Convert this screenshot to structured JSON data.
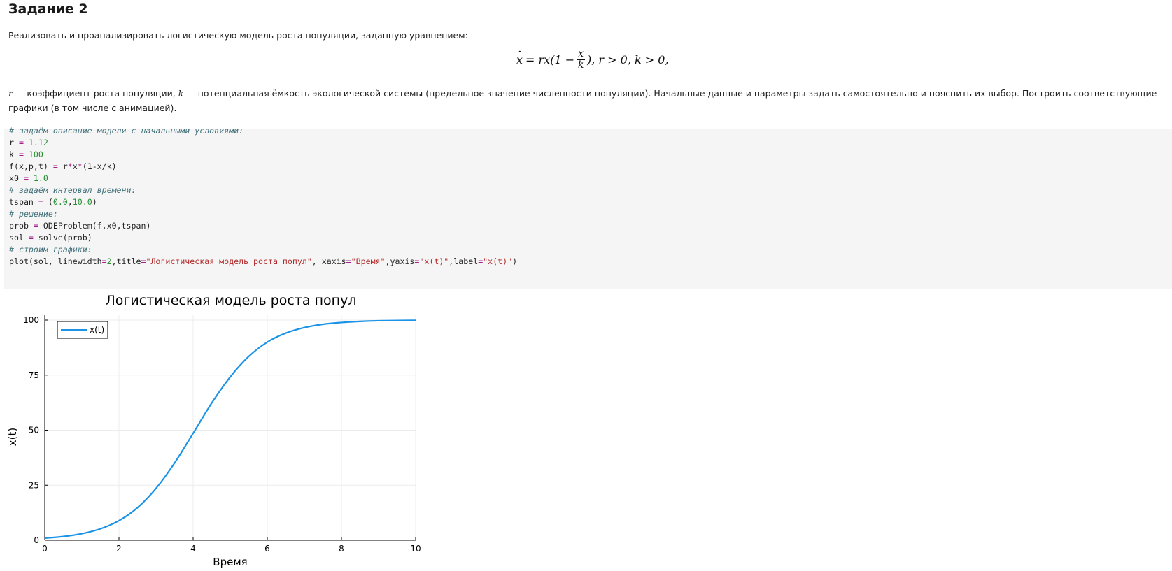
{
  "heading": "Задание 2",
  "intro": "Реализовать и проанализировать логистическую модель роста популяции, заданную уравнением:",
  "formula": {
    "lhs": "x",
    "eq": "= rx(1 −",
    "frac_num": "x",
    "frac_den": "k",
    "rest": "), r > 0, k > 0,"
  },
  "description": {
    "var_r": "r",
    "text_1": " — коэффициент роста популяции, ",
    "var_k": "k",
    "text_2": " — потенциальная ёмкость экологической системы (предельное значение численности популяции). Начальные данные и параметры задать самостоятельно и пояснить их выбор. Построить соответствующие графики (в том числе с анимацией)."
  },
  "code": {
    "comment_1": "# задаём описание модели с начальными условиями:",
    "r_name": "r",
    "r_value": "1.12",
    "k_name": "k",
    "k_value": "100",
    "f_lhs": "f(x,p,t)",
    "f_rhs_1": "r",
    "f_rhs_2": "x",
    "f_rhs_3": "(1-x/k)",
    "x0_name": "x0",
    "x0_value": "1.0",
    "comment_2": "# задаём интервал времени:",
    "tspan_name": "tspan",
    "tspan_a": "0.0",
    "tspan_b": "10.0",
    "comment_3": "# решение:",
    "prob_name": "prob",
    "prob_rhs": "ODEProblem(f,x0,tspan)",
    "sol_name": "sol",
    "sol_rhs": "solve(prob)",
    "comment_4": "# строим графики:",
    "plot_call": "plot(sol, linewidth",
    "plot_lw": "2",
    "plot_title_key": ",title",
    "plot_title_val": "\"Логистическая модель роста попул\"",
    "plot_xaxis_key": ", xaxis",
    "plot_xaxis_val": "\"Время\"",
    "plot_yaxis_key": ",yaxis",
    "plot_yaxis_val": "\"x(t)\"",
    "plot_label_key": ",label",
    "plot_label_val": "\"x(t)\"",
    "plot_close": ")",
    "eq_sign": " = ",
    "eq_sign_tight": "="
  },
  "colors": {
    "line": "#1b93e6",
    "comment": "#44737c",
    "number": "#218d2d",
    "string": "#b22a2a",
    "operator": "#a41e8c"
  },
  "chart_data": {
    "type": "line",
    "title": "Логистическая модель роста попул",
    "xlabel": "Время",
    "ylabel": "x(t)",
    "xlim": [
      0,
      10
    ],
    "ylim": [
      0,
      100
    ],
    "xticks": [
      0,
      2,
      4,
      6,
      8,
      10
    ],
    "yticks": [
      0,
      25,
      50,
      75,
      100
    ],
    "grid": true,
    "legend_position": "top-left",
    "series": [
      {
        "name": "x(t)",
        "x": [
          0,
          0.5,
          1,
          1.5,
          2,
          2.5,
          3,
          3.5,
          4,
          4.5,
          5,
          5.5,
          6,
          6.5,
          7,
          7.5,
          8,
          8.5,
          9,
          9.5,
          10
        ],
        "y": [
          1.0,
          1.7,
          3.0,
          5.2,
          8.9,
          14.8,
          23.6,
          35.1,
          48.6,
          62.3,
          74.2,
          83.5,
          90.0,
          94.1,
          96.6,
          98.1,
          98.9,
          99.4,
          99.7,
          99.8,
          99.9
        ]
      }
    ]
  }
}
